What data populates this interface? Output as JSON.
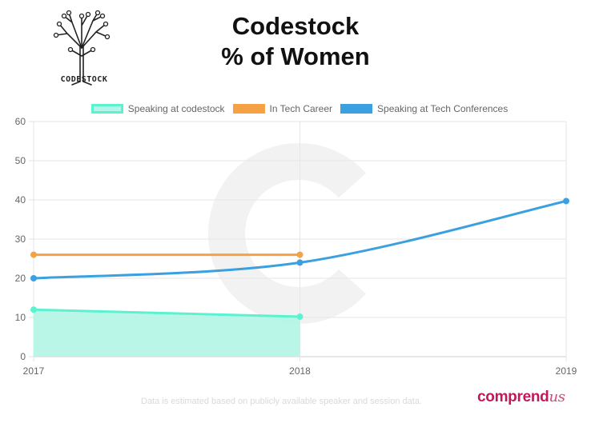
{
  "header": {
    "title_line1": "Codestock",
    "title_line2": "% of Women",
    "logo_text": "CODESTOCK"
  },
  "footer": {
    "note": "Data is estimated based on publicly available speaker and session data.",
    "brand_main": "comprend",
    "brand_script": "us"
  },
  "chart_data": {
    "type": "line",
    "x": [
      "2017",
      "2018",
      "2019"
    ],
    "ylim": [
      0,
      60
    ],
    "yticks": [
      0,
      10,
      20,
      30,
      40,
      50,
      60
    ],
    "grid": true,
    "legend_position": "top",
    "series": [
      {
        "name": "Speaking at codestock",
        "values": [
          12,
          10.2,
          null
        ],
        "color": "#5cf2cf",
        "fill": "#b3f5e6",
        "filled": true
      },
      {
        "name": "In Tech Career",
        "values": [
          26,
          26,
          null
        ],
        "color": "#f4a243",
        "filled": false
      },
      {
        "name": "Speaking at Tech Conferences",
        "values": [
          20,
          24,
          39.7
        ],
        "color": "#3aa0e0",
        "filled": false
      }
    ]
  }
}
